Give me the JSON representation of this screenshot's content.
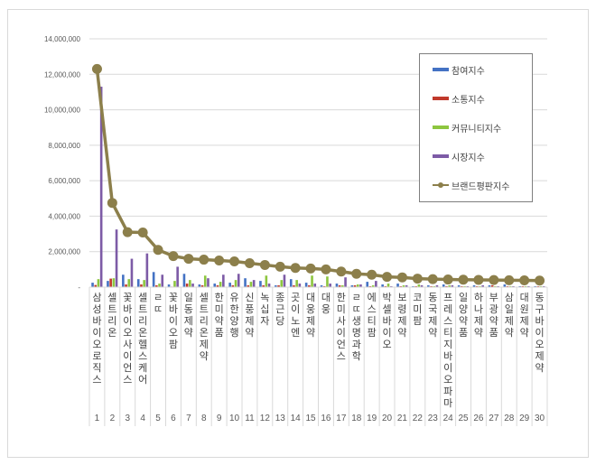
{
  "chart_data": {
    "type": "bar",
    "title": "",
    "xlabel": "",
    "ylabel": "",
    "ylim": [
      0,
      14000000
    ],
    "yticks": [
      "-",
      "2,000,000",
      "4,000,000",
      "6,000,000",
      "8,000,000",
      "10,000,000",
      "12,000,000",
      "14,000,000"
    ],
    "grid": true,
    "legend_position": "upper right (inside)",
    "categories": [
      "삼성바이오로직스",
      "셀트리온",
      "SK바이오사이언스",
      "셀트리온헬스케어",
      "SK",
      "SK바이오팜",
      "일동제약",
      "셀트리온제약",
      "한미약품",
      "유한양행",
      "신풍제약",
      "녹십자",
      "종근당",
      "SK이노엔",
      "대웅제약",
      "대웅",
      "한미사이언스",
      "SK생명과학",
      "에스티팜",
      "박셀바이오",
      "보령제약",
      "코미팜",
      "동국제약",
      "프레스티지바이오파마",
      "일양약품",
      "하나제약",
      "부광약품",
      "삼일제약",
      "대원제약",
      "동구바이오제약"
    ],
    "display_categories": [
      "삼성바이오로직스",
      "셀트리온",
      "꽃바이오사이언스",
      "셀트리온헬스케어",
      "ㄹㄸ",
      "꽃바이오팜",
      "일동제약",
      "셀트리온제약",
      "한미약품",
      "유한양행",
      "신풍제약",
      "녹십자",
      "종근당",
      "곳이노엔",
      "대웅제약",
      "대웅",
      "한미사이언스",
      "ㄹㄸ생명과학",
      "에스티팜",
      "박셀바이오",
      "보령제약",
      "코미팜",
      "동국제약",
      "프레스티지바이오파마",
      "일양약품",
      "하나제약",
      "부광약품",
      "삼일제약",
      "대원제약",
      "동구바이오제약"
    ],
    "ranks": [
      1,
      2,
      3,
      4,
      5,
      6,
      7,
      8,
      9,
      10,
      11,
      12,
      13,
      14,
      15,
      16,
      17,
      18,
      19,
      20,
      21,
      22,
      23,
      24,
      25,
      26,
      27,
      28,
      29,
      30
    ],
    "series": [
      {
        "name": "참여지수",
        "type": "bar",
        "color": "#4472c4",
        "values": [
          250000,
          350000,
          700000,
          450000,
          850000,
          150000,
          750000,
          150000,
          200000,
          250000,
          500000,
          350000,
          100000,
          450000,
          250000,
          100000,
          200000,
          100000,
          300000,
          150000,
          200000,
          50000,
          100000,
          150000,
          100000,
          100000,
          100000,
          150000,
          50000,
          50000
        ]
      },
      {
        "name": "소통지수",
        "type": "bar",
        "color": "#c0392b",
        "values": [
          120000,
          480000,
          150000,
          150000,
          100000,
          30000,
          200000,
          100000,
          100000,
          100000,
          100000,
          100000,
          100000,
          100000,
          100000,
          50000,
          100000,
          100000,
          50000,
          50000,
          50000,
          50000,
          50000,
          50000,
          50000,
          50000,
          100000,
          50000,
          50000,
          50000
        ]
      },
      {
        "name": "커뮤니티지수",
        "type": "bar",
        "color": "#8dc63f",
        "values": [
          450000,
          500000,
          450000,
          400000,
          200000,
          350000,
          400000,
          650000,
          300000,
          400000,
          300000,
          650000,
          400000,
          400000,
          650000,
          600000,
          100000,
          150000,
          100000,
          200000,
          100000,
          150000,
          50000,
          100000,
          50000,
          50000,
          50000,
          50000,
          50000,
          50000
        ]
      },
      {
        "name": "시장지수",
        "type": "bar",
        "color": "#7d5ba6",
        "values": [
          11300000,
          3250000,
          1600000,
          1900000,
          700000,
          1150000,
          200000,
          500000,
          700000,
          750000,
          400000,
          200000,
          700000,
          200000,
          200000,
          200000,
          550000,
          150000,
          350000,
          50000,
          100000,
          100000,
          100000,
          100000,
          50000,
          100000,
          50000,
          50000,
          50000,
          50000
        ]
      },
      {
        "name": "브랜드평판지수",
        "type": "line",
        "color": "#8c7f4b",
        "values": [
          12300000,
          4750000,
          3100000,
          3080000,
          2100000,
          1750000,
          1600000,
          1550000,
          1500000,
          1450000,
          1350000,
          1250000,
          1150000,
          1080000,
          1050000,
          1000000,
          880000,
          750000,
          700000,
          580000,
          550000,
          480000,
          450000,
          430000,
          420000,
          410000,
          400000,
          390000,
          380000,
          370000
        ]
      }
    ]
  },
  "legend": {
    "items": [
      {
        "label": "참여지수",
        "color": "#4472c4"
      },
      {
        "label": "소통지수",
        "color": "#c0392b"
      },
      {
        "label": "커뮤니티지수",
        "color": "#8dc63f"
      },
      {
        "label": "시장지수",
        "color": "#7d5ba6"
      },
      {
        "label": "브랜드평판지수",
        "color": "#8c7f4b"
      }
    ]
  }
}
